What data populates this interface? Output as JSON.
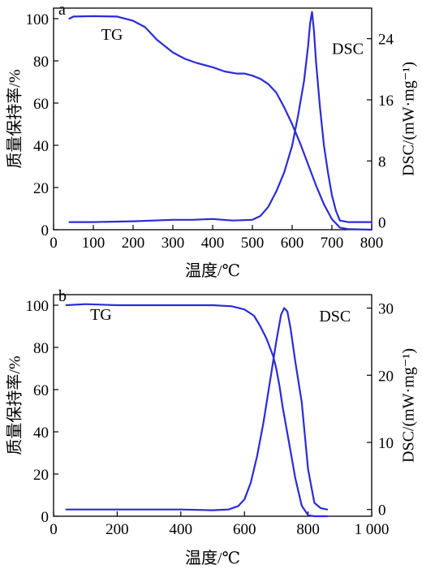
{
  "chart_data": [
    {
      "type": "line",
      "panel_label": "a",
      "xlabel": "温度/℃",
      "ylabel_left": "质量保持率/%",
      "ylabel_right": "DSC/(mW·mg⁻¹)",
      "xlim": [
        0,
        800
      ],
      "ylim_left": [
        0,
        105
      ],
      "ylim_right": [
        -1,
        28
      ],
      "x_ticks": [
        0,
        100,
        200,
        300,
        400,
        500,
        600,
        700,
        800
      ],
      "x_tick_labels": [
        "0",
        "100",
        "200",
        "300",
        "400",
        "500",
        "600",
        "700",
        "800"
      ],
      "y_left_ticks": [
        0,
        20,
        40,
        60,
        80,
        100
      ],
      "y_left_tick_labels": [
        "0",
        "20",
        "40",
        "60",
        "80",
        "100"
      ],
      "y_right_ticks": [
        0,
        8,
        16,
        24
      ],
      "y_right_tick_labels": [
        "0",
        "8",
        "16",
        "24"
      ],
      "grid": false,
      "line_color": "#2b2bd9",
      "annotations": [
        {
          "text": "TG",
          "x": 120,
          "y": 90,
          "axis": "left"
        },
        {
          "text": "DSC",
          "x": 700,
          "y": 22,
          "axis": "right"
        }
      ],
      "series": [
        {
          "axis": "left",
          "x": [
            40,
            50,
            100,
            160,
            200,
            230,
            260,
            300,
            330,
            360,
            400,
            430,
            460,
            480,
            500,
            520,
            540,
            560,
            580,
            600,
            620,
            640,
            660,
            680,
            700,
            720,
            740,
            800
          ],
          "values": [
            100,
            101,
            101.2,
            101,
            99,
            96,
            90,
            84,
            81,
            79,
            77,
            75,
            74,
            74,
            73,
            71.5,
            69,
            65,
            58,
            50,
            41,
            31,
            21,
            12,
            5,
            1,
            0.3,
            0
          ]
        },
        {
          "axis": "right",
          "x": [
            40,
            100,
            200,
            300,
            350,
            400,
            450,
            500,
            520,
            540,
            560,
            580,
            600,
            615,
            630,
            640,
            645,
            650,
            655,
            660,
            670,
            680,
            690,
            700,
            710,
            720,
            740,
            800
          ],
          "values": [
            0,
            0,
            0.1,
            0.3,
            0.3,
            0.4,
            0.2,
            0.3,
            0.8,
            2,
            4,
            6.5,
            10,
            14,
            18.5,
            23,
            26,
            27.5,
            25,
            21,
            15,
            10,
            6.5,
            3.5,
            1.5,
            0.2,
            0,
            0
          ]
        }
      ]
    },
    {
      "type": "line",
      "panel_label": "b",
      "xlabel": "温度/℃",
      "ylabel_left": "质量保持率/%",
      "ylabel_right": "DSC/(mW·mg⁻¹)",
      "xlim": [
        0,
        1000
      ],
      "ylim_left": [
        0,
        105
      ],
      "ylim_right": [
        -1,
        32
      ],
      "x_ticks": [
        0,
        200,
        400,
        600,
        800,
        1000
      ],
      "x_tick_labels": [
        "0",
        "200",
        "400",
        "600",
        "800",
        "1 000"
      ],
      "y_left_ticks": [
        0,
        20,
        40,
        60,
        80,
        100
      ],
      "y_left_tick_labels": [
        "0",
        "20",
        "40",
        "60",
        "80",
        "100"
      ],
      "y_right_ticks": [
        0,
        10,
        20,
        30
      ],
      "y_right_tick_labels": [
        "0",
        "10",
        "20",
        "30"
      ],
      "grid": false,
      "line_color": "#2b2bd9",
      "annotations": [
        {
          "text": "TG",
          "x": 115,
          "y": 93,
          "axis": "left"
        },
        {
          "text": "DSC",
          "x": 835,
          "y": 28,
          "axis": "right"
        }
      ],
      "series": [
        {
          "axis": "left",
          "x": [
            40,
            100,
            200,
            300,
            400,
            500,
            560,
            600,
            630,
            650,
            670,
            690,
            700,
            710,
            720,
            740,
            760,
            780,
            800,
            820,
            860
          ],
          "values": [
            100,
            100.5,
            100,
            100,
            100,
            100,
            99.5,
            98,
            95,
            90,
            84,
            76,
            70,
            62,
            52,
            35,
            18,
            5,
            0.5,
            0,
            0
          ]
        },
        {
          "axis": "right",
          "x": [
            40,
            200,
            400,
            500,
            550,
            580,
            600,
            620,
            640,
            660,
            680,
            700,
            715,
            725,
            735,
            745,
            760,
            780,
            800,
            820,
            840,
            860
          ],
          "values": [
            0,
            0,
            0,
            -0.1,
            0,
            0.5,
            1.5,
            4,
            8,
            13,
            19,
            25,
            29,
            30,
            29.5,
            27,
            22,
            16,
            6,
            1,
            0.2,
            0
          ]
        }
      ]
    }
  ]
}
